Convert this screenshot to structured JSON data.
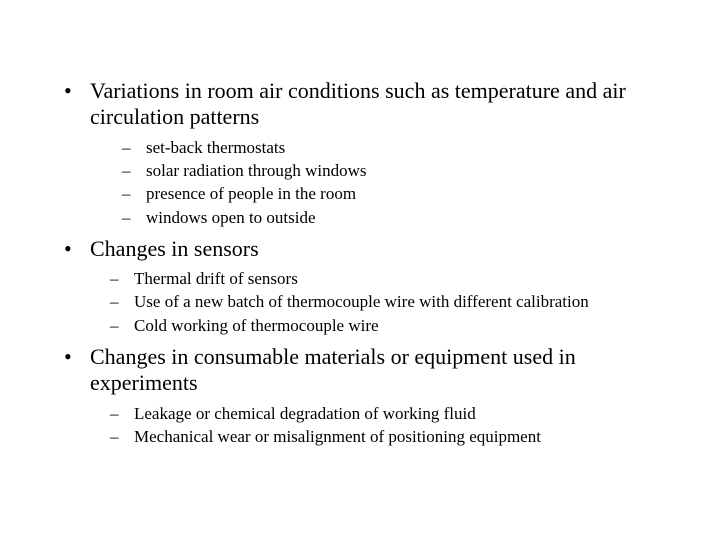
{
  "colors": {
    "background": "#ffffff",
    "text": "#000000"
  },
  "typography": {
    "font_family": "Times New Roman",
    "level1_fontsize_pt": 17,
    "level2_fontsize_pt": 13
  },
  "bullets": [
    {
      "text": "Variations in room air conditions such as temperature and air circulation patterns",
      "sub": [
        "set-back thermostats",
        "solar radiation through windows",
        "presence of people in the room",
        "windows open to outside"
      ],
      "sub_indent": "extra"
    },
    {
      "text": "Changes in sensors",
      "sub": [
        "Thermal drift of sensors",
        " Use of a new batch of thermocouple wire with different calibration",
        "Cold working of thermocouple wire"
      ],
      "sub_indent": "normal"
    },
    {
      "text": "Changes in consumable materials or equipment used in experiments",
      "sub": [
        "Leakage or chemical degradation of working fluid",
        "Mechanical wear or misalignment of positioning equipment"
      ],
      "sub_indent": "normal"
    }
  ]
}
